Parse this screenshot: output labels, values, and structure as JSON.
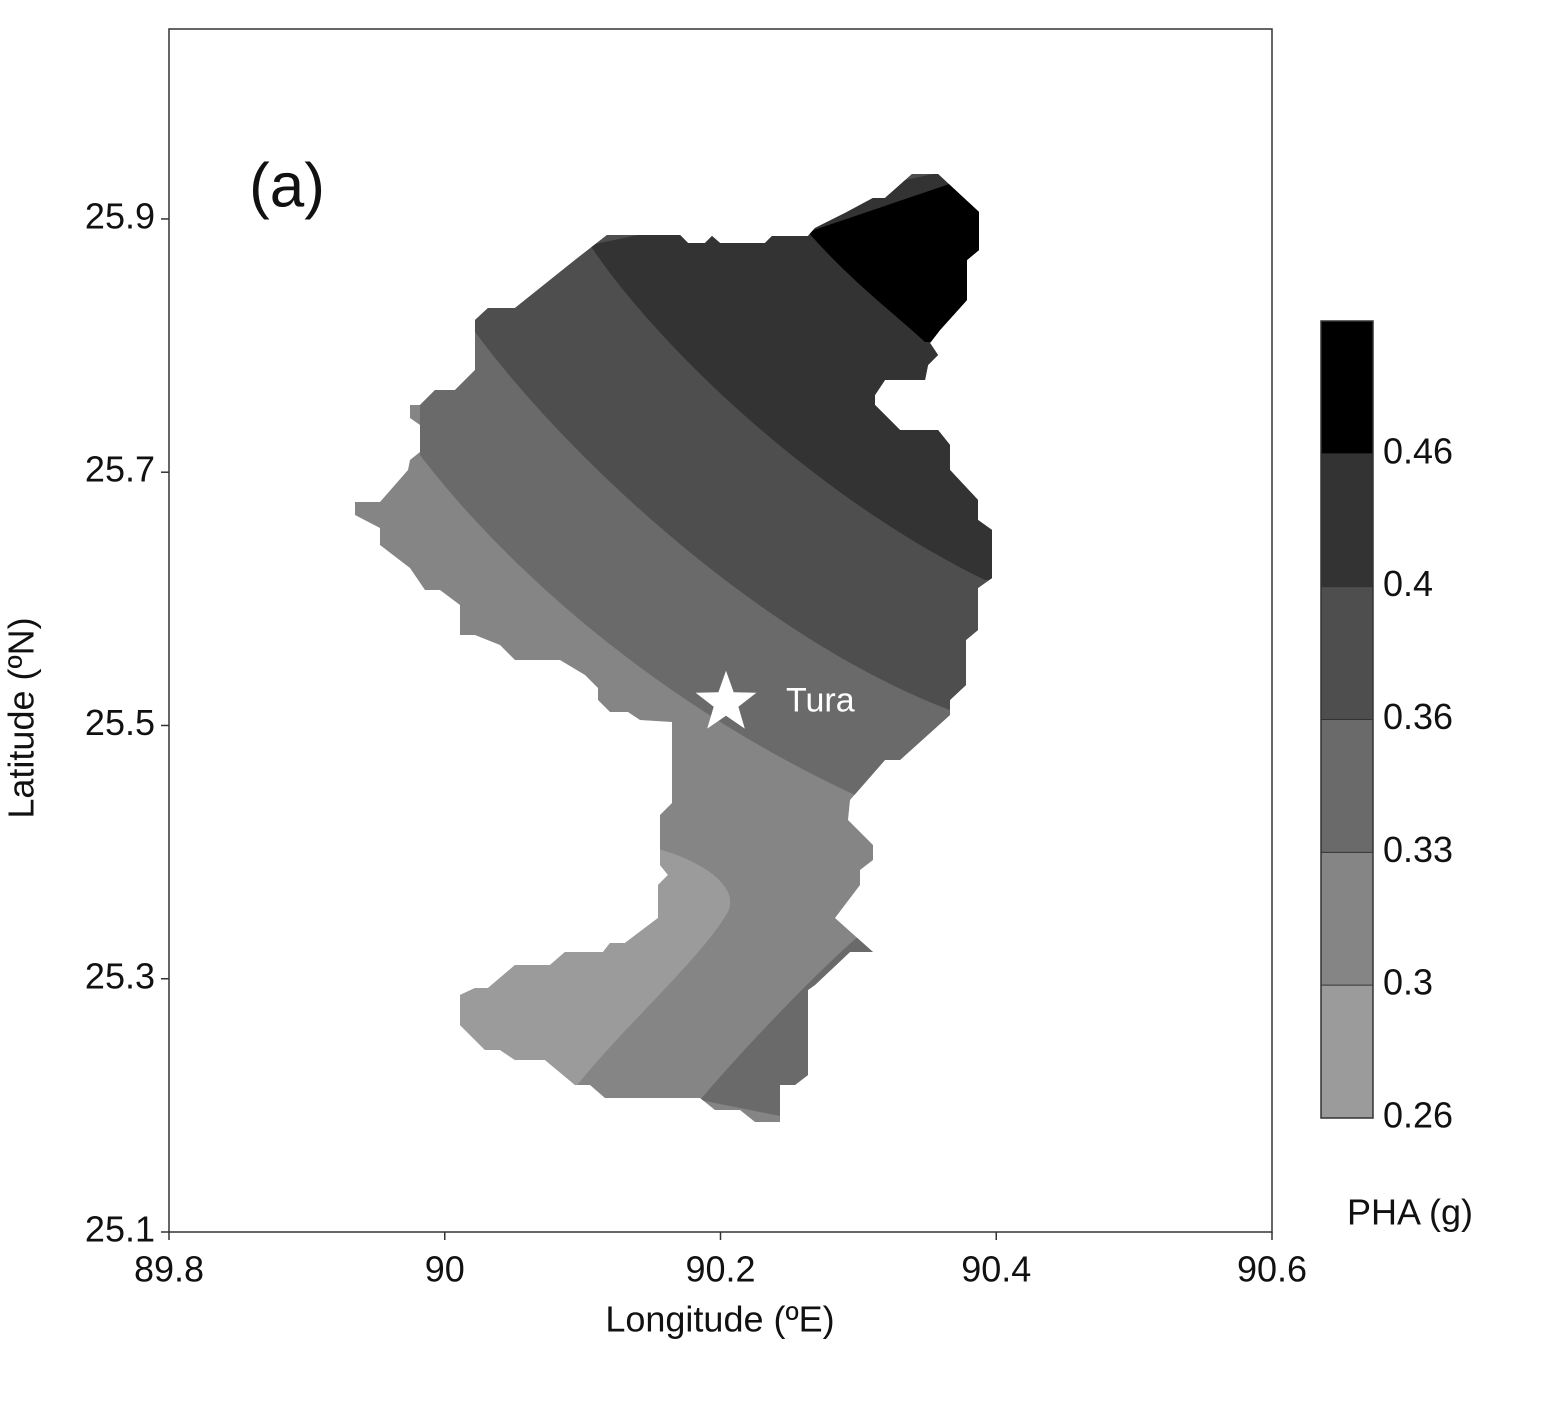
{
  "chart_data": {
    "type": "contour",
    "panel_label": "(a)",
    "xlabel": "Longitude (ºE)",
    "ylabel": "Latitude (ºN)",
    "xlim": [
      89.8,
      90.6
    ],
    "xticks": [
      89.8,
      90,
      90.2,
      90.4,
      90.6
    ],
    "ylim": [
      25.1,
      26.05
    ],
    "yticks": [
      25.1,
      25.3,
      25.5,
      25.7,
      25.9
    ],
    "colorbar": {
      "label": "PHA (g)",
      "levels": [
        0.26,
        0.3,
        0.33,
        0.36,
        0.4,
        0.46
      ],
      "colors": [
        "#9b9b9b",
        "#858585",
        "#6a6a6a",
        "#4e4e4e",
        "#333333",
        "#000000"
      ]
    },
    "marker": {
      "label": "Tura",
      "x": 90.204,
      "y": 25.518,
      "color": "#ffffff"
    }
  }
}
